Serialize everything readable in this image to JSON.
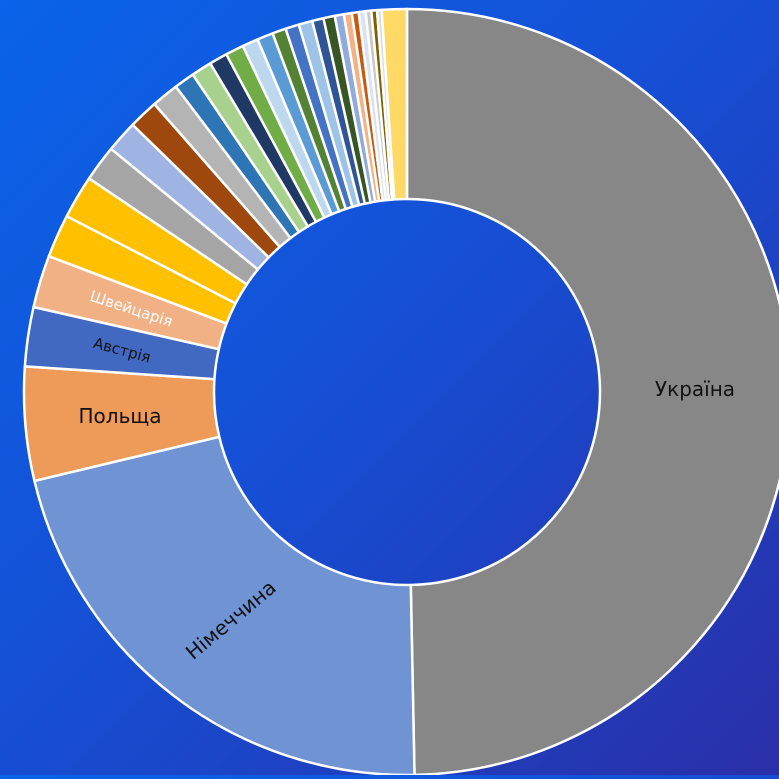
{
  "chart_data": {
    "type": "pie",
    "variant": "donut",
    "title": "",
    "unit": "%",
    "legend": "none",
    "slices": [
      {
        "label": "Україна",
        "value": 51.8,
        "color": "#878787",
        "label_color": "#111111"
      },
      {
        "label": "Німеччина",
        "value": 22.5,
        "color": "#6f93d3",
        "label_color": "#111111"
      },
      {
        "label": "Польща",
        "value": 5.0,
        "color": "#ee9a59",
        "label_color": "#111111"
      },
      {
        "label": "Австрія",
        "value": 2.6,
        "color": "#4169c1",
        "label_color": "#111111"
      },
      {
        "label": "Швейцарія",
        "value": 2.3,
        "color": "#f2b184",
        "label_color": "#ffffff"
      },
      {
        "label": "",
        "value": 1.9,
        "color": "#ffc000",
        "label_color": ""
      },
      {
        "label": "",
        "value": 1.9,
        "color": "#ffc000",
        "label_color": ""
      },
      {
        "label": "",
        "value": 1.6,
        "color": "#a5a5a5",
        "label_color": ""
      },
      {
        "label": "",
        "value": 1.4,
        "color": "#9fb4e3",
        "label_color": ""
      },
      {
        "label": "",
        "value": 1.3,
        "color": "#9e480e",
        "label_color": ""
      },
      {
        "label": "",
        "value": 1.2,
        "color": "#b4b4b4",
        "label_color": ""
      },
      {
        "label": "",
        "value": 0.9,
        "color": "#2e75b6",
        "label_color": ""
      },
      {
        "label": "",
        "value": 0.9,
        "color": "#a9d18e",
        "label_color": ""
      },
      {
        "label": "",
        "value": 0.8,
        "color": "#203864",
        "label_color": ""
      },
      {
        "label": "",
        "value": 0.8,
        "color": "#70ad47",
        "label_color": ""
      },
      {
        "label": "",
        "value": 0.7,
        "color": "#bdd7ee",
        "label_color": ""
      },
      {
        "label": "",
        "value": 0.7,
        "color": "#5b9bd5",
        "label_color": ""
      },
      {
        "label": "",
        "value": 0.6,
        "color": "#548235",
        "label_color": ""
      },
      {
        "label": "",
        "value": 0.6,
        "color": "#4472c4",
        "label_color": ""
      },
      {
        "label": "",
        "value": 0.6,
        "color": "#9dc3e6",
        "label_color": ""
      },
      {
        "label": "",
        "value": 0.5,
        "color": "#2f5597",
        "label_color": ""
      },
      {
        "label": "",
        "value": 0.5,
        "color": "#375623",
        "label_color": ""
      },
      {
        "label": "",
        "value": 0.4,
        "color": "#8faadc",
        "label_color": ""
      },
      {
        "label": "",
        "value": 0.35,
        "color": "#f4b183",
        "label_color": ""
      },
      {
        "label": "",
        "value": 0.3,
        "color": "#c55a11",
        "label_color": ""
      },
      {
        "label": "",
        "value": 0.3,
        "color": "#dae3f3",
        "label_color": ""
      },
      {
        "label": "",
        "value": 0.25,
        "color": "#c9c9c9",
        "label_color": ""
      },
      {
        "label": "",
        "value": 0.25,
        "color": "#7f6000",
        "label_color": ""
      },
      {
        "label": "",
        "value": 0.2,
        "color": "#d6dce5",
        "label_color": ""
      },
      {
        "label": "",
        "value": 1.1,
        "color": "#ffd966",
        "label_color": ""
      }
    ]
  }
}
